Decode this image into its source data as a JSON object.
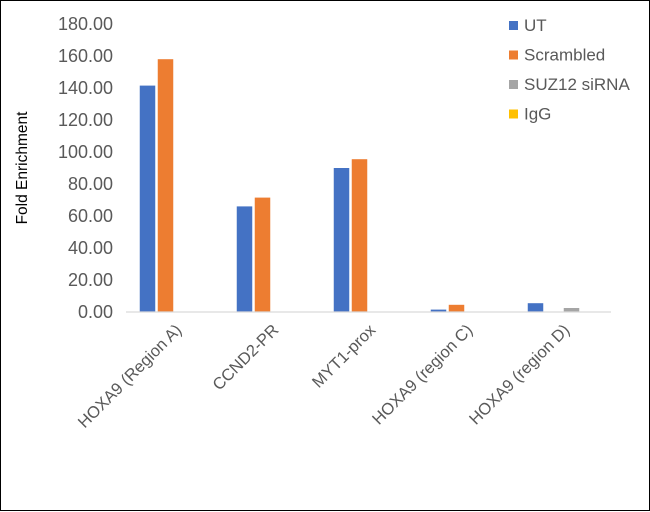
{
  "chart_data": {
    "type": "bar",
    "title": "",
    "xlabel": "",
    "ylabel": "Fold Enrichment",
    "ylim": [
      0,
      180
    ],
    "ytick_step": 20,
    "ytick_labels": [
      "0.00",
      "20.00",
      "40.00",
      "60.00",
      "80.00",
      "100.00",
      "120.00",
      "140.00",
      "160.00",
      "180.00"
    ],
    "categories": [
      "HOXA9 (Region A)",
      "CCND2-PR",
      "MYT1-prox",
      "HOXA9 (region C)",
      "HOXA9 (region D)"
    ],
    "series": [
      {
        "name": "UT",
        "color": "#4472C4",
        "values": [
          141.5,
          66.0,
          90.0,
          1.5,
          5.5
        ]
      },
      {
        "name": "Scrambled",
        "color": "#ED7D31",
        "values": [
          158.0,
          71.5,
          95.5,
          4.5,
          0.0
        ]
      },
      {
        "name": "SUZ12 siRNA",
        "color": "#A5A5A5",
        "values": [
          0.0,
          0.0,
          0.0,
          0.0,
          2.5
        ]
      },
      {
        "name": "IgG",
        "color": "#FFC000",
        "values": [
          0.0,
          0.0,
          0.0,
          0.0,
          0.0
        ]
      }
    ],
    "grid": false,
    "legend_position": "top-right"
  }
}
